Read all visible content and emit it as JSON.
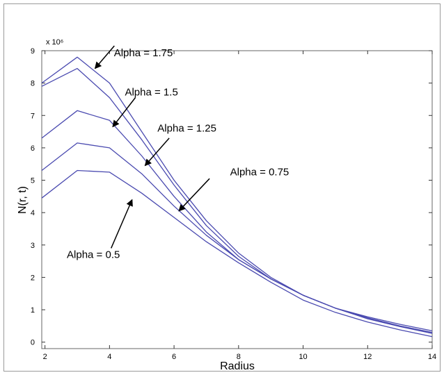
{
  "chart_data": {
    "type": "line",
    "xlabel": "Radius",
    "ylabel": "N(r, t)",
    "y_multiplier": "x 10⁶",
    "xlim": [
      1.9,
      14
    ],
    "ylim": [
      -0.2,
      9
    ],
    "x_ticks": [
      2,
      4,
      6,
      8,
      10,
      12,
      14
    ],
    "y_ticks": [
      0,
      1,
      2,
      3,
      4,
      5,
      6,
      7,
      8,
      9
    ],
    "grid": false,
    "line_color": "#4a4ab0",
    "series": [
      {
        "name": "Alpha = 1.75",
        "x": [
          1.9,
          3,
          4,
          5,
          6,
          7,
          8,
          9,
          10,
          11,
          12,
          13,
          14
        ],
        "y": [
          8.0,
          8.8,
          8.0,
          6.5,
          5.0,
          3.75,
          2.75,
          2.0,
          1.45,
          1.05,
          0.72,
          0.48,
          0.27
        ]
      },
      {
        "name": "Alpha = 1.5",
        "x": [
          1.9,
          3,
          4,
          5,
          6,
          7,
          8,
          9,
          10,
          11,
          12,
          13,
          14
        ],
        "y": [
          7.9,
          8.45,
          7.55,
          6.25,
          4.85,
          3.6,
          2.65,
          1.95,
          1.45,
          1.05,
          0.75,
          0.5,
          0.3
        ]
      },
      {
        "name": "Alpha = 1.25",
        "x": [
          1.9,
          3,
          4,
          5,
          6,
          7,
          8,
          9,
          10,
          11,
          12,
          13,
          14
        ],
        "y": [
          6.3,
          7.15,
          6.85,
          5.75,
          4.5,
          3.4,
          2.55,
          1.95,
          1.45,
          1.05,
          0.78,
          0.55,
          0.35
        ]
      },
      {
        "name": "Alpha = 0.75",
        "x": [
          1.9,
          3,
          4,
          5,
          6,
          7,
          8,
          9,
          10,
          11,
          12,
          13,
          14
        ],
        "y": [
          5.3,
          6.15,
          6.0,
          5.2,
          4.2,
          3.3,
          2.55,
          1.95,
          1.45,
          1.05,
          0.75,
          0.5,
          0.3
        ]
      },
      {
        "name": "Alpha = 0.5",
        "x": [
          1.9,
          3,
          4,
          5,
          6,
          7,
          8,
          9,
          10,
          11,
          12,
          13,
          14
        ],
        "y": [
          4.45,
          5.3,
          5.25,
          4.6,
          3.85,
          3.1,
          2.45,
          1.85,
          1.3,
          0.92,
          0.62,
          0.38,
          0.17
        ]
      }
    ],
    "annotations": [
      {
        "text": "Alpha = 1.75",
        "x": 5.05,
        "y": 8.83,
        "arrow_from": [
          4.15,
          9.15
        ],
        "arrow_to": [
          3.55,
          8.45
        ]
      },
      {
        "text": "Alpha = 1.5",
        "x": 5.3,
        "y": 7.62,
        "arrow_from": [
          4.8,
          7.55
        ],
        "arrow_to": [
          4.1,
          6.65
        ]
      },
      {
        "text": "Alpha = 1.25",
        "x": 6.4,
        "y": 6.5,
        "arrow_from": [
          5.85,
          6.3
        ],
        "arrow_to": [
          5.1,
          5.45
        ]
      },
      {
        "text": "Alpha = 0.75",
        "x": 8.65,
        "y": 5.15,
        "arrow_from": [
          7.1,
          5.05
        ],
        "arrow_to": [
          6.15,
          4.05
        ]
      },
      {
        "text": "Alpha = 0.5",
        "x": 3.5,
        "y": 2.6,
        "arrow_from": [
          4.05,
          2.9
        ],
        "arrow_to": [
          4.7,
          4.4
        ]
      }
    ]
  }
}
